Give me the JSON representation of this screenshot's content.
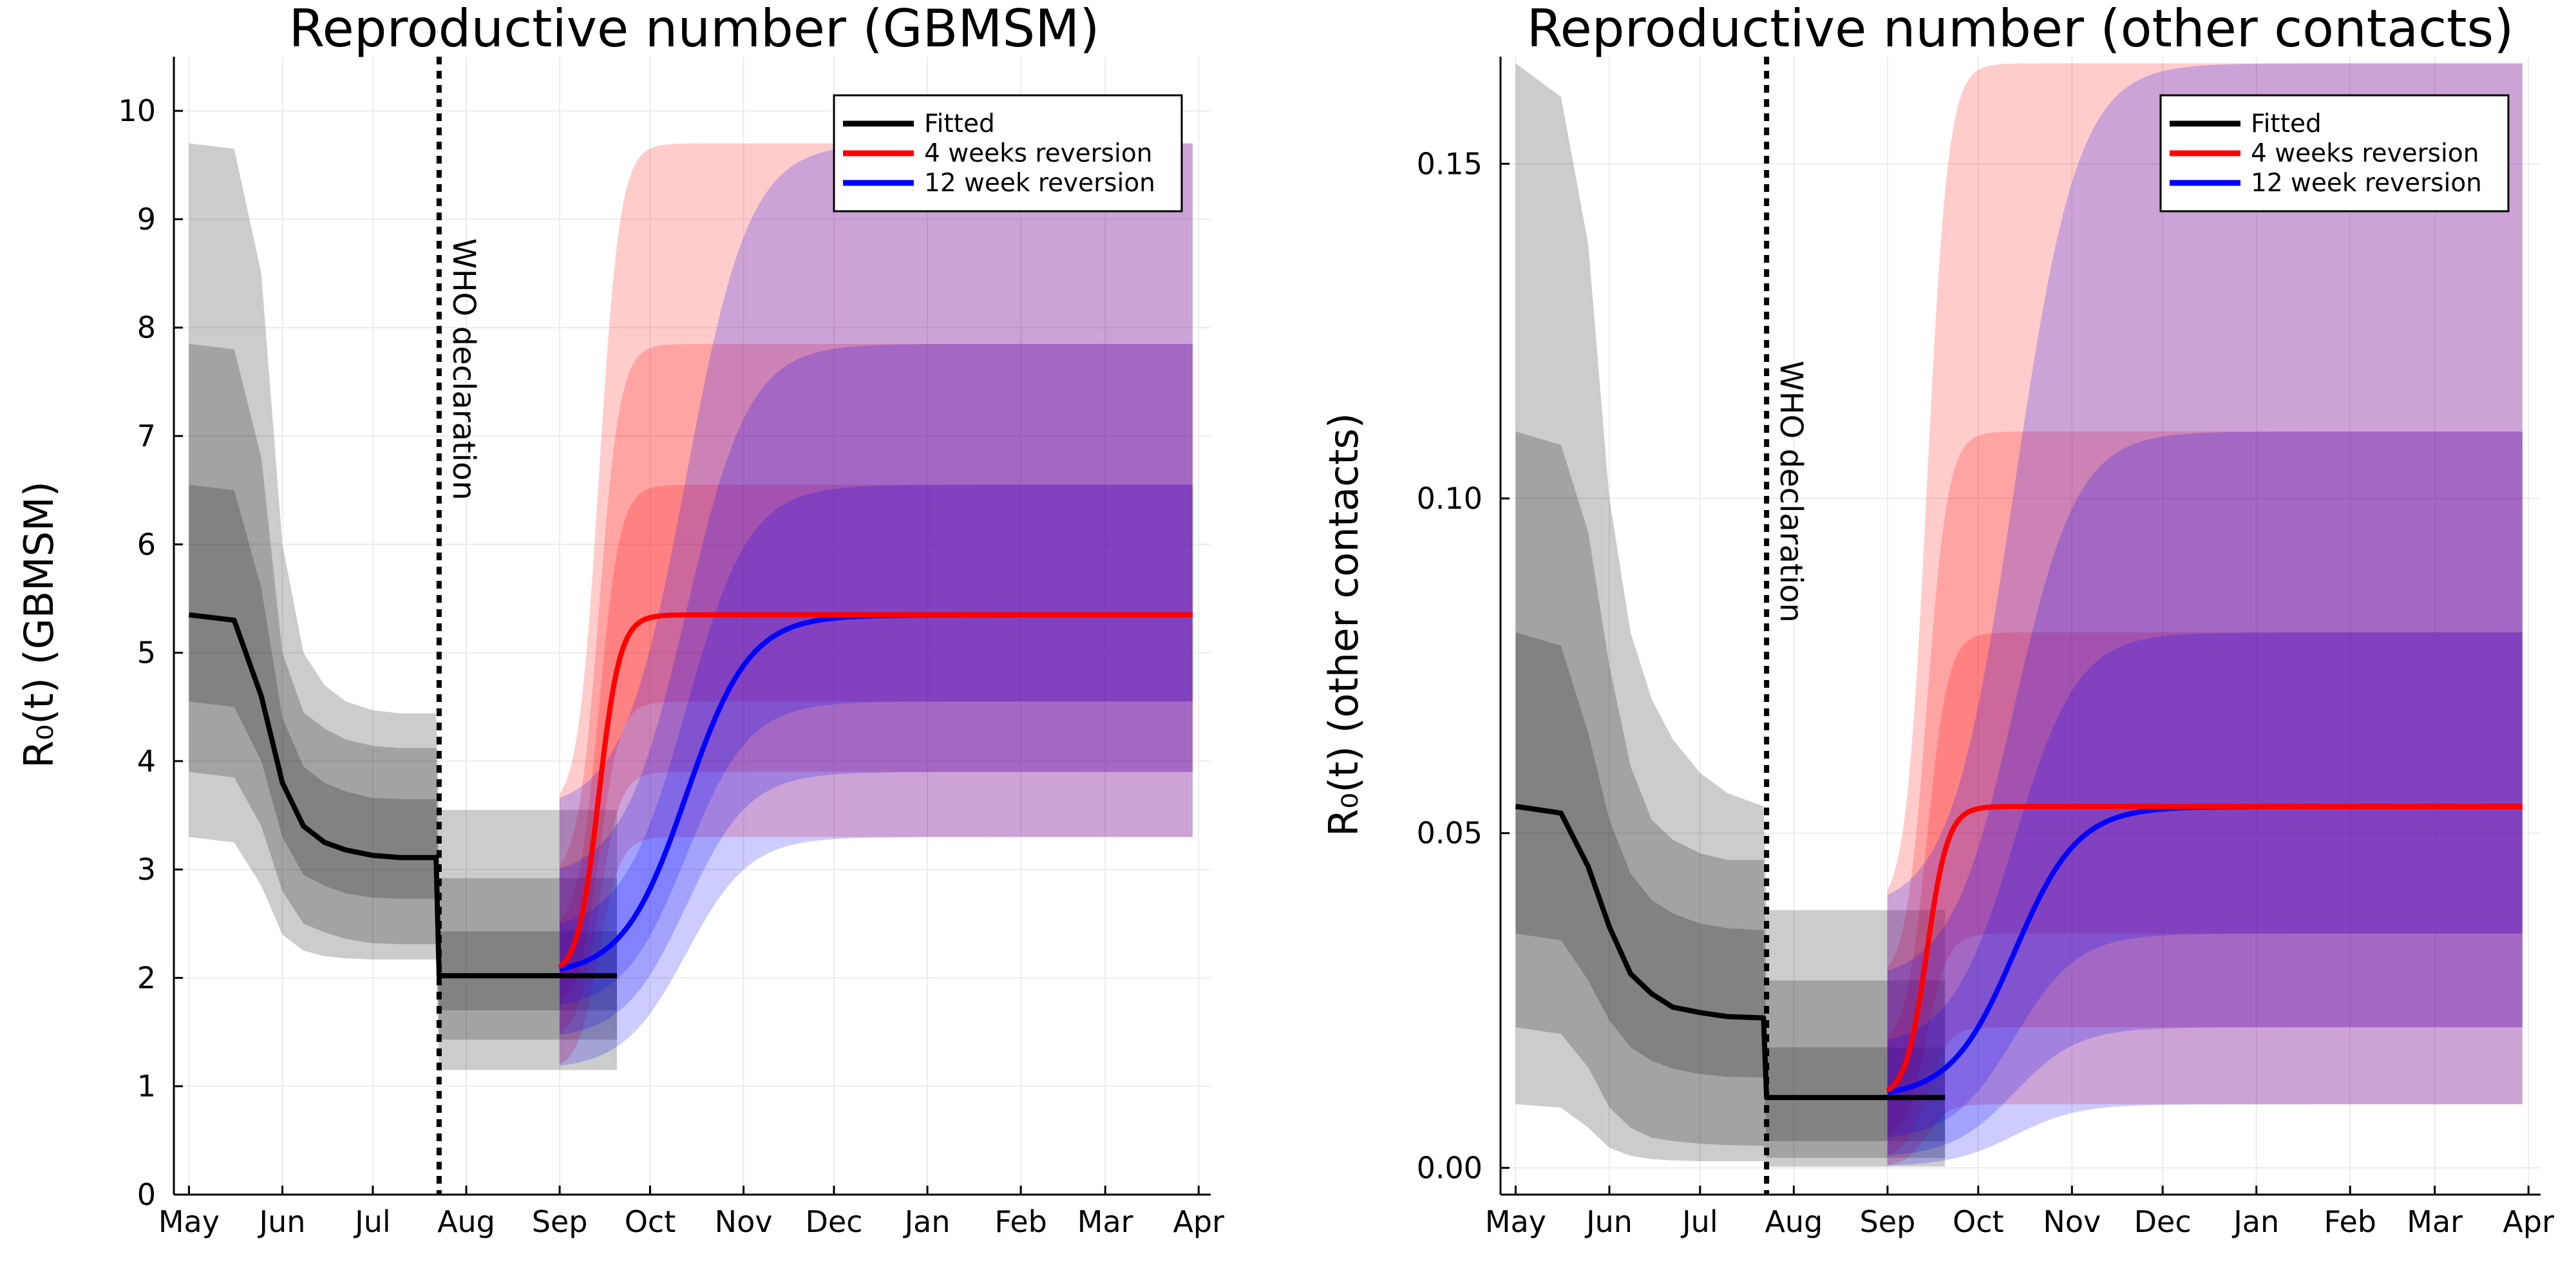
{
  "colors": {
    "fitted": "#000000",
    "four_week": "#ff0000",
    "twelve_week": "#0000ff",
    "grey_band": "#000000",
    "red_band": "#ff0000",
    "blue_band": "#0000ff",
    "grid": "#ececec"
  },
  "chart_data": [
    {
      "type": "area",
      "title": "Reproductive number (GBMSM)",
      "ylabel": "R₀(t) (GBMSM)",
      "xlabel": "",
      "x_ticks": [
        "May",
        "Jun",
        "Jul",
        "Aug",
        "Sep",
        "Oct",
        "Nov",
        "Dec",
        "Jan",
        "Feb",
        "Mar",
        "Apr"
      ],
      "xlim": [
        "2022-04-26",
        "2023-04-05"
      ],
      "ylim": [
        0,
        10.5
      ],
      "y_ticks": [
        0,
        1,
        2,
        3,
        4,
        5,
        6,
        7,
        8,
        9,
        10
      ],
      "grid": true,
      "legend_position": "top-right",
      "vline": {
        "date": "2022-07-23",
        "label": "WHO declaration"
      },
      "series": [
        {
          "name": "Fitted",
          "color": "#000000",
          "x": [
            "2022-05-01",
            "2022-05-16",
            "2022-05-25",
            "2022-06-01",
            "2022-06-08",
            "2022-06-15",
            "2022-06-22",
            "2022-07-01",
            "2022-07-10",
            "2022-07-22",
            "2022-07-23",
            "2022-08-15",
            "2022-09-01",
            "2022-09-20"
          ],
          "values": [
            5.35,
            5.3,
            4.6,
            3.8,
            3.4,
            3.25,
            3.18,
            3.13,
            3.11,
            3.11,
            2.02,
            2.02,
            2.02,
            2.02
          ],
          "bands": [
            {
              "level": "inner",
              "lower": [
                4.55,
                4.5,
                4.0,
                3.3,
                2.95,
                2.85,
                2.78,
                2.74,
                2.73,
                2.73,
                1.7,
                1.7,
                1.7,
                1.7
              ],
              "upper": [
                6.55,
                6.5,
                5.6,
                4.4,
                3.95,
                3.8,
                3.72,
                3.66,
                3.65,
                3.65,
                2.43,
                2.43,
                2.43,
                2.43
              ]
            },
            {
              "level": "middle",
              "lower": [
                3.9,
                3.85,
                3.4,
                2.8,
                2.5,
                2.42,
                2.36,
                2.32,
                2.31,
                2.31,
                1.43,
                1.43,
                1.43,
                1.43
              ],
              "upper": [
                7.85,
                7.8,
                6.8,
                5.0,
                4.45,
                4.3,
                4.2,
                4.14,
                4.12,
                4.12,
                2.92,
                2.92,
                2.92,
                2.92
              ]
            },
            {
              "level": "outer",
              "lower": [
                3.3,
                3.25,
                2.85,
                2.4,
                2.25,
                2.2,
                2.18,
                2.17,
                2.17,
                2.17,
                1.15,
                1.15,
                1.15,
                1.15
              ],
              "upper": [
                9.7,
                9.65,
                8.5,
                6.0,
                5.0,
                4.7,
                4.55,
                4.47,
                4.44,
                4.44,
                3.55,
                3.55,
                3.55,
                3.55
              ]
            }
          ]
        },
        {
          "name": "4 weeks reversion",
          "color": "#ff0000",
          "start": "2022-09-01",
          "midpoint": "2022-09-14",
          "rise_days": 3.5,
          "from": 2.02,
          "to": 5.35,
          "end": "2023-03-30",
          "band_from": {
            "inner": [
              1.7,
              2.43
            ],
            "middle": [
              1.43,
              2.92
            ],
            "outer": [
              1.15,
              3.55
            ]
          },
          "band_to": {
            "inner": [
              4.55,
              6.55
            ],
            "middle": [
              3.9,
              7.85
            ],
            "outer": [
              3.3,
              9.7
            ]
          }
        },
        {
          "name": "12 week reversion",
          "color": "#0000ff",
          "start": "2022-09-01",
          "midpoint": "2022-10-13",
          "rise_days": 10.5,
          "from": 2.02,
          "to": 5.35,
          "end": "2023-03-30",
          "band_from": {
            "inner": [
              1.7,
              2.43
            ],
            "middle": [
              1.43,
              2.92
            ],
            "outer": [
              1.15,
              3.55
            ]
          },
          "band_to": {
            "inner": [
              4.55,
              6.55
            ],
            "middle": [
              3.9,
              7.85
            ],
            "outer": [
              3.3,
              9.7
            ]
          }
        }
      ]
    },
    {
      "type": "area",
      "title": "Reproductive number (other contacts)",
      "ylabel": "R₀(t) (other contacts)",
      "xlabel": "",
      "x_ticks": [
        "May",
        "Jun",
        "Jul",
        "Aug",
        "Sep",
        "Oct",
        "Nov",
        "Dec",
        "Jan",
        "Feb",
        "Mar",
        "Apr"
      ],
      "xlim": [
        "2022-04-26",
        "2023-04-05"
      ],
      "ylim": [
        -0.004,
        0.166
      ],
      "y_ticks": [
        "0.00",
        "0.05",
        "0.10",
        "0.15"
      ],
      "grid": true,
      "legend_position": "top-right",
      "vline": {
        "date": "2022-07-23",
        "label": "WHO declaration"
      },
      "series": [
        {
          "name": "Fitted",
          "color": "#000000",
          "x": [
            "2022-05-01",
            "2022-05-16",
            "2022-05-25",
            "2022-06-01",
            "2022-06-08",
            "2022-06-15",
            "2022-06-22",
            "2022-07-01",
            "2022-07-10",
            "2022-07-22",
            "2022-07-23",
            "2022-08-15",
            "2022-09-01",
            "2022-09-20"
          ],
          "values": [
            0.054,
            0.053,
            0.045,
            0.036,
            0.029,
            0.026,
            0.024,
            0.0232,
            0.0226,
            0.0224,
            0.0105,
            0.0105,
            0.0105,
            0.0105
          ],
          "bands": [
            {
              "level": "inner",
              "lower": [
                0.035,
                0.034,
                0.028,
                0.022,
                0.018,
                0.016,
                0.0148,
                0.014,
                0.0136,
                0.0135,
                0.004,
                0.004,
                0.004,
                0.004
              ],
              "upper": [
                0.08,
                0.078,
                0.065,
                0.052,
                0.044,
                0.04,
                0.038,
                0.0365,
                0.0358,
                0.0355,
                0.018,
                0.018,
                0.018,
                0.018
              ]
            },
            {
              "level": "middle",
              "lower": [
                0.021,
                0.02,
                0.015,
                0.009,
                0.006,
                0.0045,
                0.004,
                0.0036,
                0.0034,
                0.0033,
                0.0015,
                0.0015,
                0.0015,
                0.0015
              ],
              "upper": [
                0.11,
                0.108,
                0.095,
                0.075,
                0.06,
                0.052,
                0.049,
                0.047,
                0.046,
                0.046,
                0.028,
                0.028,
                0.028,
                0.028
              ]
            },
            {
              "level": "outer",
              "lower": [
                0.0095,
                0.009,
                0.006,
                0.003,
                0.0018,
                0.0013,
                0.0011,
                0.001,
                0.001,
                0.001,
                0.0002,
                0.0002,
                0.0002,
                0.0002
              ],
              "upper": [
                0.165,
                0.16,
                0.138,
                0.1,
                0.08,
                0.07,
                0.064,
                0.059,
                0.056,
                0.054,
                0.0385,
                0.0385,
                0.0385,
                0.0385
              ]
            }
          ]
        },
        {
          "name": "4 weeks reversion",
          "color": "#ff0000",
          "start": "2022-09-01",
          "midpoint": "2022-09-14",
          "rise_days": 3.5,
          "from": 0.0105,
          "to": 0.054,
          "end": "2023-03-30",
          "band_from": {
            "inner": [
              0.004,
              0.018
            ],
            "middle": [
              0.0015,
              0.028
            ],
            "outer": [
              0.0002,
              0.0385
            ]
          },
          "band_to": {
            "inner": [
              0.035,
              0.08
            ],
            "middle": [
              0.021,
              0.11
            ],
            "outer": [
              0.0095,
              0.165
            ]
          }
        },
        {
          "name": "12 week reversion",
          "color": "#0000ff",
          "start": "2022-09-01",
          "midpoint": "2022-10-13",
          "rise_days": 10.5,
          "from": 0.0105,
          "to": 0.054,
          "end": "2023-03-30",
          "band_from": {
            "inner": [
              0.004,
              0.018
            ],
            "middle": [
              0.0015,
              0.028
            ],
            "outer": [
              0.0002,
              0.0385
            ]
          },
          "band_to": {
            "inner": [
              0.035,
              0.08
            ],
            "middle": [
              0.021,
              0.11
            ],
            "outer": [
              0.0095,
              0.165
            ]
          }
        }
      ]
    }
  ]
}
